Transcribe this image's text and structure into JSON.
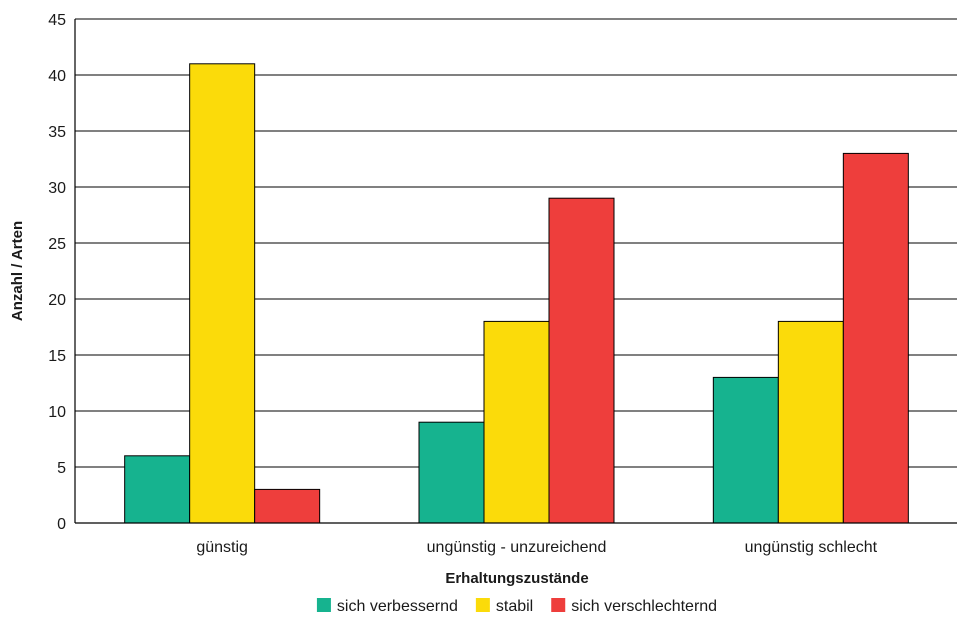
{
  "chart_data": {
    "type": "bar",
    "title": "",
    "xlabel": "Erhaltungszustände",
    "ylabel": "Anzahl / Arten",
    "ylim": [
      0,
      45
    ],
    "yticks": [
      0,
      5,
      10,
      15,
      20,
      25,
      30,
      35,
      40,
      45
    ],
    "grid": true,
    "legend_position": "bottom",
    "categories": [
      "günstig",
      "ungünstig - unzureichend",
      "ungünstig schlecht"
    ],
    "series": [
      {
        "name": "sich verbessernd",
        "color": "#16b38f",
        "values": [
          6,
          9,
          13
        ]
      },
      {
        "name": "stabil",
        "color": "#fbdb0a",
        "values": [
          41,
          18,
          18
        ]
      },
      {
        "name": "sich verschlechternd",
        "color": "#ee3e3c",
        "values": [
          3,
          29,
          33
        ]
      }
    ]
  }
}
